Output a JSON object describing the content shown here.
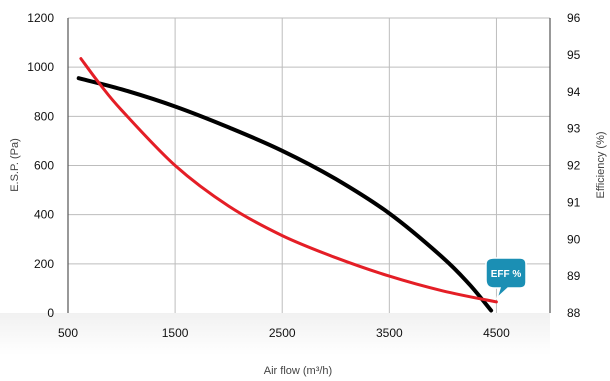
{
  "chart_data": {
    "type": "line",
    "xlabel": "Air flow (m³/h)",
    "ylabel": "E.S.P. (Pa)",
    "y2label": "Efficiency (%)",
    "xlim": [
      500,
      5000
    ],
    "ylim": [
      0,
      1200
    ],
    "y2lim": [
      88,
      96
    ],
    "x_ticks": [
      "500",
      "1500",
      "2500",
      "3500",
      "4500"
    ],
    "x_tick_values": [
      500,
      1500,
      2500,
      3500,
      4500
    ],
    "y_ticks": [
      "0",
      "200",
      "400",
      "600",
      "800",
      "1000",
      "1200"
    ],
    "y_tick_values": [
      0,
      200,
      400,
      600,
      800,
      1000,
      1200
    ],
    "y2_ticks": [
      "88",
      "89",
      "90",
      "91",
      "92",
      "93",
      "94",
      "95",
      "96"
    ],
    "y2_tick_values": [
      88,
      89,
      90,
      91,
      92,
      93,
      94,
      95,
      96
    ],
    "grid": true,
    "series": [
      {
        "axis": "left",
        "color": "#000000",
        "x": [
          600,
          1000,
          1500,
          2000,
          2500,
          3000,
          3500,
          4000,
          4250,
          4450
        ],
        "y": [
          955,
          910,
          840,
          755,
          660,
          545,
          405,
          225,
          115,
          10
        ]
      },
      {
        "name": "EFF %",
        "axis": "right",
        "color": "#e41e26",
        "x": [
          620,
          800,
          1000,
          1500,
          2000,
          2500,
          3000,
          3500,
          4000,
          4500
        ],
        "y": [
          94.9,
          94.2,
          93.5,
          92.0,
          90.9,
          90.1,
          89.5,
          89.0,
          88.6,
          88.3
        ]
      }
    ]
  }
}
